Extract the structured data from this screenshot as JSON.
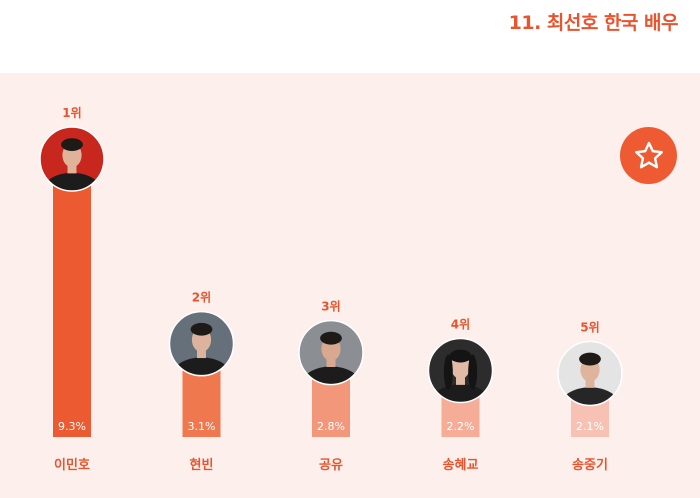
{
  "title": "11. 최선호 한국  배우",
  "colors": {
    "accent": "#e8542e",
    "panel": "#fdf0ec",
    "bars": [
      "#ec5a32",
      "#f0784f",
      "#f3977a",
      "#f5ad97",
      "#f7c2b3"
    ]
  },
  "icons": {
    "badge": "star-icon",
    "avatar": "person-photo"
  },
  "chart_data": {
    "type": "bar",
    "categories": [
      "이민호",
      "현빈",
      "공유",
      "송혜교",
      "송중기"
    ],
    "ranks": [
      "1위",
      "2위",
      "3위",
      "4위",
      "5위"
    ],
    "values": [
      9.3,
      3.1,
      2.8,
      2.2,
      2.1
    ],
    "value_labels": [
      "9.3%",
      "3.1%",
      "2.8%",
      "2.2%",
      "2.1%"
    ],
    "grid": false
  }
}
